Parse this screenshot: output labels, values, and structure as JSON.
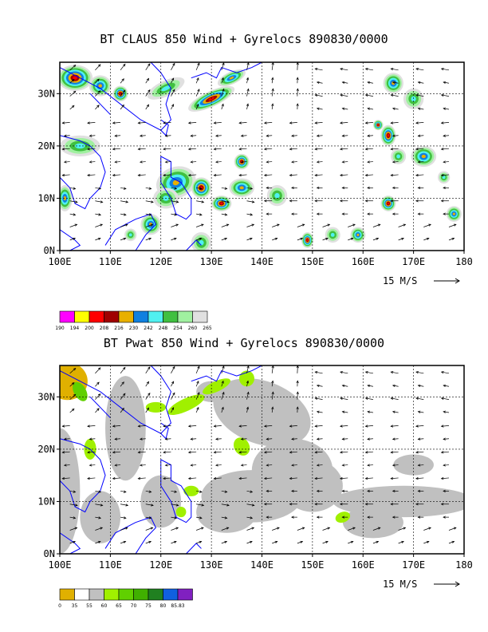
{
  "panels": [
    {
      "title": "BT CLAUS 850 Wind + Gyrelocs 890830/0000",
      "x_ticks": [
        "100E",
        "110E",
        "120E",
        "130E",
        "140E",
        "150E",
        "160E",
        "170E",
        "180"
      ],
      "y_ticks": [
        "0N",
        "10N",
        "20N",
        "30N"
      ],
      "reference_vector": "15 M/S",
      "colorbar": {
        "colors": [
          "#ff00ff",
          "#ffff00",
          "#ff0000",
          "#a00000",
          "#e8b000",
          "#1080e0",
          "#50f0f0",
          "#40c040",
          "#a0f0a0",
          "#e0e0e0"
        ],
        "labels": [
          "190",
          "194",
          "200",
          "208",
          "216",
          "230",
          "242",
          "248",
          "254",
          "260",
          "265"
        ]
      }
    },
    {
      "title": "BT Pwat 850 Wind + Gyrelocs 890830/0000",
      "x_ticks": [
        "100E",
        "110E",
        "120E",
        "130E",
        "140E",
        "150E",
        "160E",
        "170E",
        "180"
      ],
      "y_ticks": [
        "0N",
        "10N",
        "20N",
        "30N"
      ],
      "reference_vector": "15 M/S",
      "colorbar": {
        "colors": [
          "#e0b000",
          "#ffffff",
          "#c0c0c0",
          "#a0f000",
          "#60d000",
          "#40b000",
          "#208020",
          "#1060e0",
          "#8020c0"
        ],
        "labels": [
          "0",
          "35",
          "55",
          "60",
          "65",
          "70",
          "75",
          "80",
          "85.83"
        ]
      }
    }
  ]
}
